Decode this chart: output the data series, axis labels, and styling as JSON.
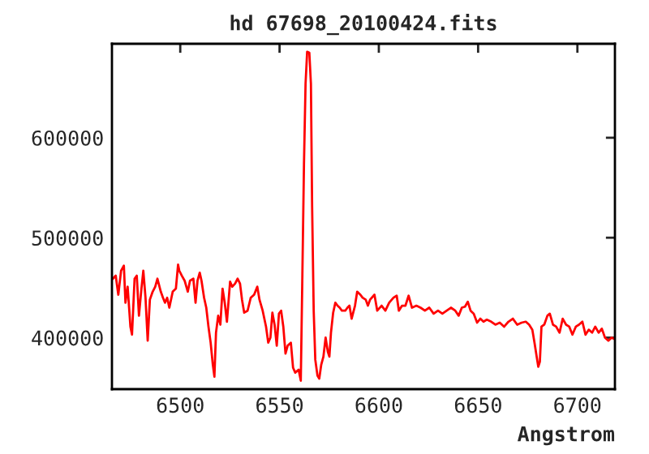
{
  "chart_data": {
    "type": "line",
    "title": "hd 67698_20100424.fits",
    "xlabel": "Angstrom",
    "xlim": [
      6465.6,
      6718.9
    ],
    "ylim": [
      348500,
      694000
    ],
    "xticks": [
      6500,
      6550,
      6600,
      6650,
      6700
    ],
    "yticks": [
      400000,
      500000,
      600000
    ],
    "grid": false,
    "legend": false,
    "marker": "none",
    "line_style": "solid",
    "series": [
      {
        "color": "#ff0000",
        "x": [
          6466.1,
          6467.5,
          6468.8,
          6470.2,
          6471.6,
          6472.4,
          6473.5,
          6474.9,
          6475.7,
          6477.0,
          6478.1,
          6479.2,
          6480.3,
          6481.4,
          6482.5,
          6483.6,
          6484.7,
          6486.1,
          6487.4,
          6488.5,
          6490.2,
          6491.3,
          6492.3,
          6493.4,
          6494.5,
          6496.2,
          6497.8,
          6498.9,
          6499.5,
          6500.8,
          6502.2,
          6503.8,
          6504.9,
          6506.6,
          6507.7,
          6508.7,
          6509.8,
          6510.7,
          6512.0,
          6513.1,
          6514.2,
          6515.3,
          6516.4,
          6517.2,
          6518.0,
          6519.1,
          6520.2,
          6521.3,
          6522.4,
          6523.5,
          6525.1,
          6526.2,
          6527.6,
          6528.9,
          6530.1,
          6531.1,
          6532.2,
          6533.9,
          6535.5,
          6537.2,
          6538.8,
          6539.9,
          6541.5,
          6543.2,
          6544.3,
          6545.4,
          6546.4,
          6547.5,
          6548.6,
          6549.7,
          6550.8,
          6551.9,
          6553.0,
          6554.1,
          6555.7,
          6556.8,
          6557.9,
          6559.6,
          6560.7,
          6561.5,
          6562.3,
          6563.1,
          6563.9,
          6565.0,
          6565.8,
          6566.4,
          6567.2,
          6568.0,
          6569.1,
          6570.0,
          6571.0,
          6572.1,
          6573.2,
          6574.3,
          6575.1,
          6575.9,
          6577.0,
          6578.1,
          6579.2,
          6580.3,
          6581.4,
          6583.1,
          6584.2,
          6585.2,
          6586.3,
          6588.0,
          6589.1,
          6590.7,
          6591.8,
          6593.4,
          6594.5,
          6595.6,
          6597.8,
          6599.2,
          6601.4,
          6603.3,
          6605.2,
          6607.4,
          6609.0,
          6610.1,
          6611.7,
          6613.4,
          6615.0,
          6616.7,
          6618.9,
          6621.0,
          6623.2,
          6625.4,
          6627.6,
          6629.8,
          6632.0,
          6634.2,
          6636.3,
          6638.5,
          6640.2,
          6641.8,
          6643.4,
          6644.8,
          6646.2,
          6647.8,
          6649.5,
          6651.1,
          6652.7,
          6654.4,
          6656.6,
          6658.7,
          6660.9,
          6663.1,
          6665.3,
          6667.5,
          6669.7,
          6671.9,
          6674.0,
          6675.7,
          6677.3,
          6678.4,
          6679.5,
          6680.3,
          6681.1,
          6681.9,
          6683.3,
          6684.9,
          6686.1,
          6687.7,
          6689.3,
          6691.0,
          6692.6,
          6694.3,
          6695.9,
          6697.5,
          6699.2,
          6700.8,
          6702.5,
          6704.1,
          6705.7,
          6707.4,
          6709.0,
          6710.7,
          6712.3,
          6713.9,
          6715.6,
          6717.2,
          6718.3
        ],
        "values": [
          459000,
          462000,
          443000,
          467000,
          472000,
          435000,
          451000,
          411000,
          403000,
          459000,
          462000,
          422000,
          446000,
          467000,
          440000,
          397000,
          438000,
          446000,
          451000,
          459000,
          446000,
          440000,
          435000,
          440000,
          430000,
          446000,
          449000,
          473000,
          467000,
          462000,
          457000,
          446000,
          457000,
          459000,
          435000,
          457000,
          465000,
          457000,
          440000,
          430000,
          411000,
          395000,
          373000,
          361000,
          405000,
          422000,
          413000,
          449000,
          435000,
          416000,
          456000,
          451000,
          454000,
          459000,
          454000,
          438000,
          425000,
          427000,
          440000,
          443000,
          451000,
          438000,
          427000,
          411000,
          395000,
          400000,
          425000,
          413000,
          392000,
          424000,
          427000,
          411000,
          384000,
          392000,
          395000,
          370000,
          365000,
          368000,
          357000,
          463000,
          573000,
          654000,
          686000,
          685000,
          654000,
          532000,
          427000,
          378000,
          362000,
          359000,
          373000,
          381000,
          400000,
          386000,
          381000,
          405000,
          425000,
          435000,
          432000,
          430000,
          427000,
          427000,
          430000,
          432000,
          419000,
          432000,
          446000,
          443000,
          440000,
          438000,
          432000,
          438000,
          443000,
          427000,
          432000,
          427000,
          435000,
          440000,
          442000,
          427000,
          432000,
          432000,
          442000,
          430000,
          432000,
          430000,
          427000,
          430000,
          424000,
          427000,
          424000,
          427000,
          430000,
          427000,
          422000,
          430000,
          431000,
          436000,
          427000,
          424000,
          415000,
          419000,
          416000,
          418000,
          416000,
          413000,
          415000,
          411000,
          416000,
          419000,
          413000,
          415000,
          416000,
          413000,
          408000,
          395000,
          381000,
          371000,
          376000,
          411000,
          413000,
          422000,
          424000,
          413000,
          411000,
          405000,
          419000,
          413000,
          411000,
          403000,
          411000,
          413000,
          416000,
          403000,
          408000,
          405000,
          411000,
          405000,
          409000,
          400000,
          397000,
          400000,
          399000
        ]
      }
    ]
  }
}
